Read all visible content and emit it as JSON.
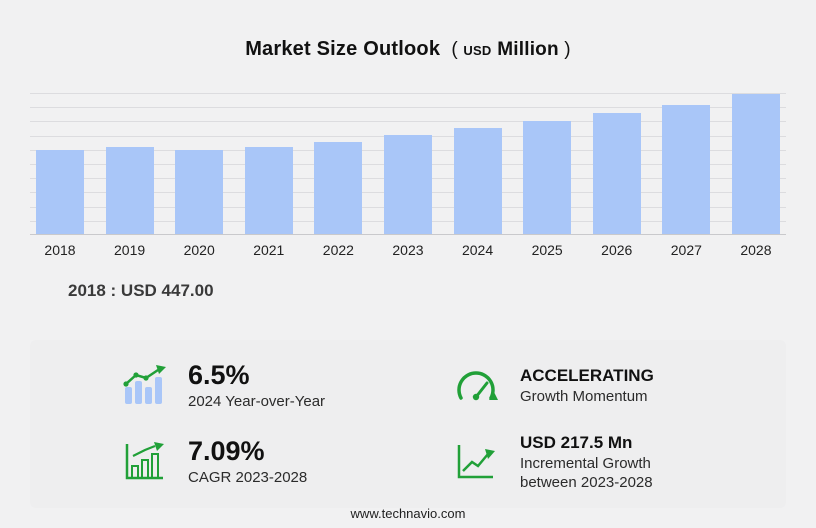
{
  "title": {
    "main": "Market Size Outlook",
    "paren_open": "(",
    "currency": "USD",
    "unit": "Million",
    "paren_close": ")"
  },
  "chart_data": {
    "type": "bar",
    "title": "Market Size Outlook (USD Million)",
    "categories": [
      "2018",
      "2019",
      "2020",
      "2021",
      "2022",
      "2023",
      "2024",
      "2025",
      "2026",
      "2027",
      "2028"
    ],
    "values": [
      447.0,
      465.0,
      452.0,
      466.0,
      492.0,
      531.6,
      566.2,
      603.0,
      645.0,
      693.0,
      749.1
    ],
    "xlabel": "",
    "ylabel": "USD Million",
    "ylim": [
      0,
      760
    ],
    "grid": true,
    "gridline_count": 10,
    "legend": "none",
    "bar_color": "#a9c6f8",
    "annotation_2018": "2018 : USD 447.00"
  },
  "base_note": "2018 : USD 447.00",
  "stats": [
    {
      "icon": "yoy-bars-icon",
      "value": "6.5%",
      "label": "2024 Year-over-Year"
    },
    {
      "icon": "gauge-icon",
      "value": "ACCELERATING",
      "label": "Growth Momentum"
    },
    {
      "icon": "cagr-chart-icon",
      "value": "7.09%",
      "label": "CAGR 2023-2028"
    },
    {
      "icon": "incremental-growth-icon",
      "value": "USD 217.5 Mn",
      "label": "Incremental Growth between 2023-2028"
    }
  ],
  "footer": {
    "url": "www.technavio.com"
  },
  "colors": {
    "background": "#f1f1f2",
    "bar": "#a9c6f8",
    "accent_green": "#21a038",
    "gridline": "#dcdcdf"
  }
}
